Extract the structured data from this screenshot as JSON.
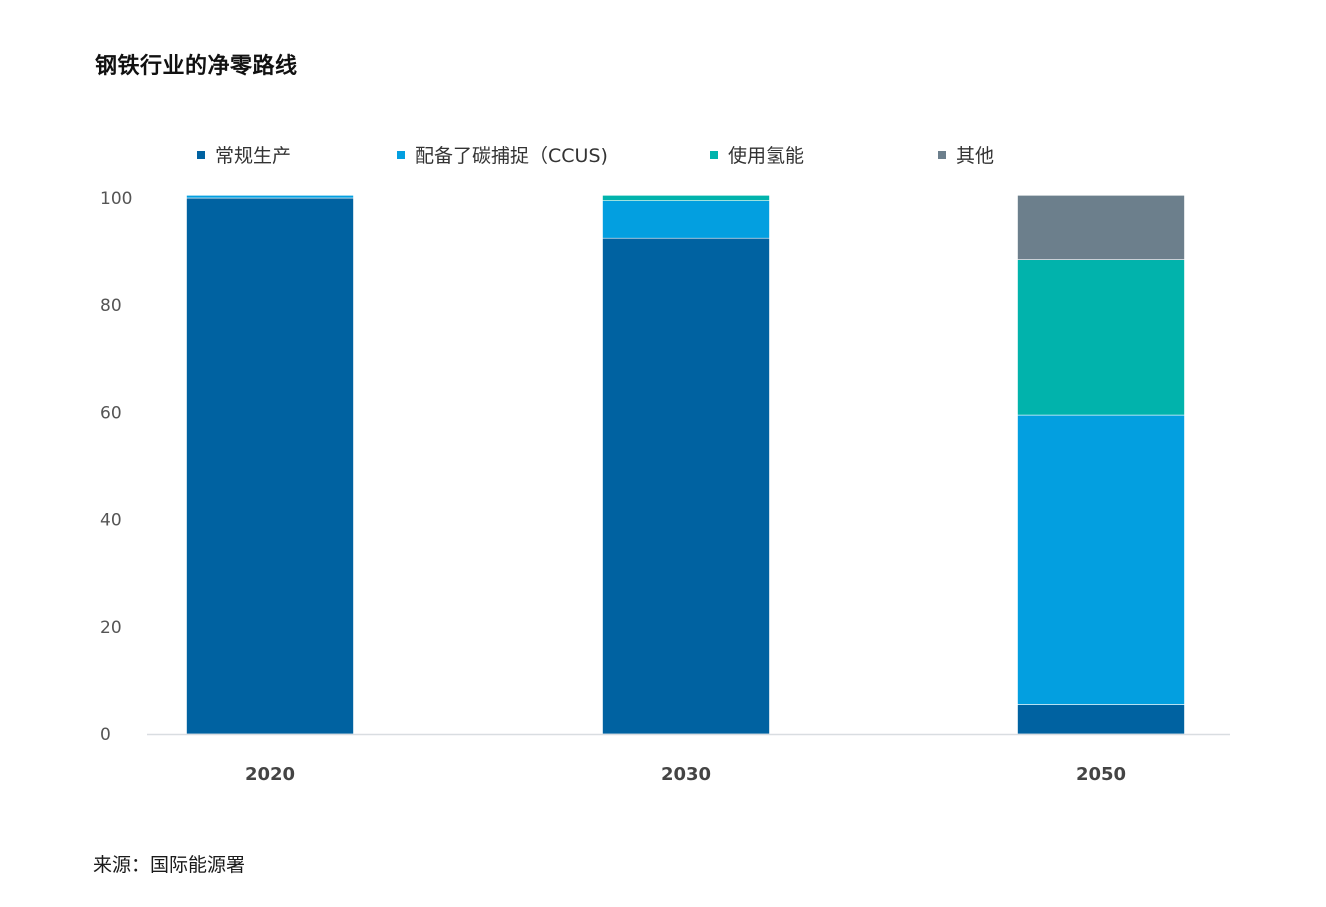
{
  "title": "钢铁行业的净零路线",
  "source": "来源：国际能源署",
  "chart_data": {
    "type": "bar",
    "stacked": true,
    "title": "钢铁行业的净零路线",
    "categories": [
      "2020",
      "2030",
      "2050"
    ],
    "series": [
      {
        "name": "常规生产",
        "color": "#0062A1",
        "values": [
          100,
          92.5,
          5.5
        ]
      },
      {
        "name": "配备了碳捕捉（CCUS)",
        "color": "#039FE0",
        "values": [
          0.5,
          7,
          54
        ]
      },
      {
        "name": "使用氢能",
        "color": "#01B3AC",
        "values": [
          0,
          1,
          29
        ]
      },
      {
        "name": "其他",
        "color": "#6C7F8C",
        "values": [
          0,
          0,
          12
        ]
      }
    ],
    "yticks": [
      "0",
      "20",
      "40",
      "60",
      "80",
      "100"
    ],
    "ylim": [
      0,
      100
    ],
    "xlabel": "",
    "ylabel": "",
    "grid": false,
    "legend": "top"
  }
}
